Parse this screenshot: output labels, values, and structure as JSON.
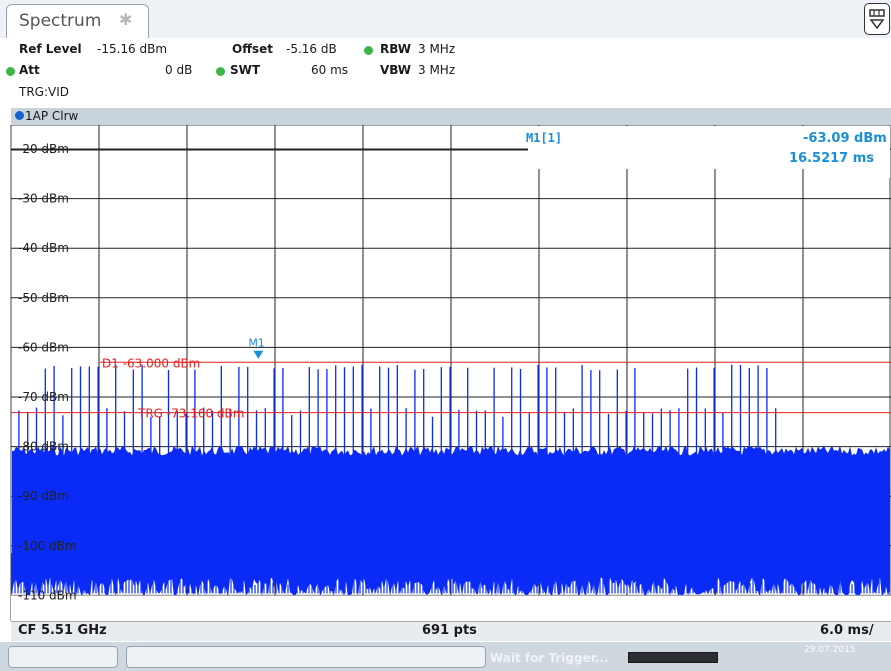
{
  "tab": {
    "label": "Spectrum"
  },
  "info": {
    "ref_level_label": "Ref Level",
    "ref_level_value": "-15.16 dBm",
    "offset_label": "Offset",
    "offset_value": "-5.16 dB",
    "rbw_label": "RBW",
    "rbw_value": "3 MHz",
    "att_label": "Att",
    "att_value": "0 dB",
    "swt_label": "SWT",
    "swt_value": "60 ms",
    "vbw_label": "VBW",
    "vbw_value": "3 MHz",
    "trg_label": "TRG:VID"
  },
  "trace": {
    "label": "1AP Clrw"
  },
  "marker": {
    "header": "M1[1]",
    "level": "-63.09 dBm",
    "time": "16.5217 ms",
    "flag": "M1"
  },
  "lines": {
    "d1": "D1  -63.000 dBm",
    "trg": "TRG  -73.160 dBm"
  },
  "footer": {
    "cf": "CF 5.51 GHz",
    "pts": "691 pts",
    "div": "6.0 ms/"
  },
  "status": {
    "message": "Wait for Trigger...",
    "date": "29.07.2015",
    "time": ""
  },
  "colors": {
    "trace": "#0a2bf5",
    "limit_line": "#e02020",
    "marker": "#1a8fd6"
  },
  "chart_data": {
    "type": "line",
    "ylabel_unit": "dBm",
    "ylim": [
      -115.16,
      -15.16
    ],
    "y_ticks": [
      -20,
      -30,
      -40,
      -50,
      -60,
      -70,
      -80,
      -90,
      -100,
      -110
    ],
    "y_tick_labels": [
      "-20 dBm",
      "-30 dBm",
      "-40 dBm",
      "-50 dBm",
      "-60 dBm",
      "-70 dBm",
      "-80 dBm",
      "-90 dBm",
      "-100 dBm",
      "-110 dBm"
    ],
    "x_span_ms": 60,
    "noise_floor_top_dbm": -80,
    "noise_floor_bottom_dbm": -110,
    "burst_peak_dbm": -63.0,
    "burst_period_ms": 0.6,
    "burst_region_end_ms": 52,
    "marker_x_ms": 16.5217,
    "marker_y_dbm": -63.09,
    "d1_dbm": -63.0,
    "trg_dbm": -73.16,
    "grid": true
  }
}
